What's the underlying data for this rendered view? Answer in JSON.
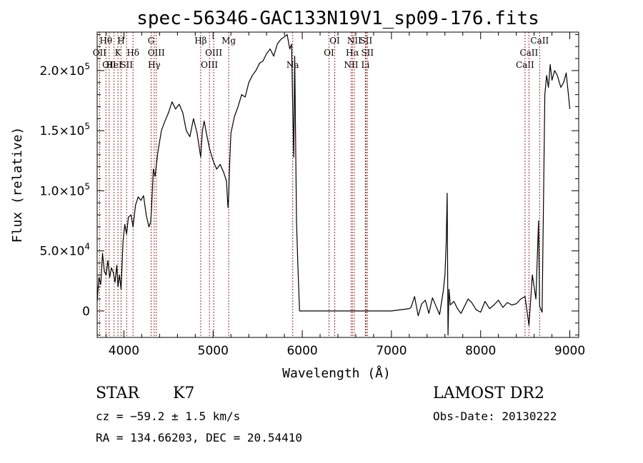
{
  "chart_data": {
    "type": "line",
    "title": "spec-56346-GAC133N19V1_sp09-176.fits",
    "xlabel": "Wavelength (Å)",
    "ylabel": "Flux (relative)",
    "xlim": [
      3700,
      9100
    ],
    "ylim": [
      -22000,
      232000
    ],
    "grid": false,
    "x_ticks": [
      {
        "value": 4000,
        "label": "4000"
      },
      {
        "value": 5000,
        "label": "5000"
      },
      {
        "value": 6000,
        "label": "6000"
      },
      {
        "value": 7000,
        "label": "7000"
      },
      {
        "value": 8000,
        "label": "8000"
      },
      {
        "value": 9000,
        "label": "9000"
      }
    ],
    "y_ticks": [
      {
        "value": 0,
        "label": "0"
      },
      {
        "value": 50000,
        "label": "5.0×10",
        "exp": "4"
      },
      {
        "value": 100000,
        "label": "1.0×10",
        "exp": "5"
      },
      {
        "value": 150000,
        "label": "1.5×10",
        "exp": "5"
      },
      {
        "value": 200000,
        "label": "2.0×10",
        "exp": "5"
      }
    ],
    "series": [
      {
        "x": [
          3700,
          3720,
          3740,
          3760,
          3780,
          3800,
          3820,
          3840,
          3860,
          3880,
          3900,
          3920,
          3933,
          3950,
          3968,
          3990,
          4010,
          4030,
          4050,
          4080,
          4102,
          4130,
          4160,
          4190,
          4220,
          4250,
          4280,
          4300,
          4310,
          4330,
          4350,
          4380,
          4420,
          4460,
          4500,
          4540,
          4580,
          4620,
          4660,
          4700,
          4740,
          4780,
          4820,
          4861,
          4880,
          4900,
          4930,
          4960,
          5000,
          5040,
          5080,
          5120,
          5150,
          5167,
          5175,
          5185,
          5200,
          5240,
          5280,
          5320,
          5360,
          5400,
          5440,
          5480,
          5520,
          5560,
          5600,
          5640,
          5680,
          5720,
          5760,
          5800,
          5830,
          5860,
          5880,
          5893,
          5905,
          5915,
          5935,
          5950,
          5970,
          6000,
          6500,
          7000,
          7200,
          7220,
          7260,
          7300,
          7340,
          7380,
          7420,
          7460,
          7500,
          7540,
          7580,
          7600,
          7615,
          7625,
          7635,
          7645,
          7660,
          7700,
          7740,
          7780,
          7820,
          7860,
          7900,
          7950,
          8000,
          8050,
          8100,
          8150,
          8200,
          8250,
          8300,
          8350,
          8400,
          8450,
          8498,
          8542,
          8580,
          8620,
          8650,
          8662,
          8690,
          8720,
          8740,
          8760,
          8780,
          8800,
          8830,
          8860,
          8900,
          8930,
          8960,
          8990,
          9000
        ],
        "y": [
          8000,
          28000,
          22000,
          48000,
          33000,
          30000,
          42000,
          28000,
          36000,
          32000,
          24000,
          38000,
          20000,
          30000,
          18000,
          58000,
          72000,
          64000,
          78000,
          80000,
          70000,
          88000,
          95000,
          92000,
          96000,
          80000,
          70000,
          74000,
          85000,
          118000,
          112000,
          132000,
          150000,
          158000,
          165000,
          174000,
          168000,
          172000,
          165000,
          150000,
          145000,
          160000,
          148000,
          128000,
          150000,
          158000,
          146000,
          135000,
          125000,
          118000,
          122000,
          115000,
          108000,
          86000,
          96000,
          122000,
          148000,
          162000,
          170000,
          180000,
          178000,
          190000,
          196000,
          200000,
          206000,
          208000,
          214000,
          218000,
          212000,
          222000,
          226000,
          228000,
          230000,
          218000,
          222000,
          170000,
          128000,
          212000,
          75000,
          40000,
          0,
          0,
          0,
          0,
          2000,
          3000,
          12000,
          -4000,
          6000,
          9000,
          -2000,
          11000,
          4000,
          -3000,
          16000,
          30000,
          58000,
          98000,
          -20000,
          18000,
          5000,
          8000,
          2000,
          -2000,
          4000,
          10000,
          7000,
          1000,
          -1000,
          8000,
          2000,
          5000,
          9000,
          3000,
          7000,
          5000,
          6000,
          10000,
          12000,
          -12000,
          30000,
          10000,
          75000,
          4000,
          -1000,
          180000,
          196000,
          186000,
          205000,
          192000,
          200000,
          196000,
          186000,
          190000,
          198000,
          176000,
          168000
        ]
      }
    ],
    "line_marks": [
      {
        "x": 3727,
        "label": "OII",
        "row": 1
      },
      {
        "x": 3798,
        "label": "Hθ",
        "row": 0
      },
      {
        "x": 3835,
        "label": "OII",
        "row": 2
      },
      {
        "x": 3889,
        "label": "HeI",
        "row": 2
      },
      {
        "x": 3933,
        "label": "K",
        "row": 1
      },
      {
        "x": 3968,
        "label": "H",
        "row": 0
      },
      {
        "x": 4030,
        "label": "SII",
        "row": 2
      },
      {
        "x": 4102,
        "label": "Hδ",
        "row": 1
      },
      {
        "x": 4305,
        "label": "G",
        "row": 0
      },
      {
        "x": 4340,
        "label": "Hγ",
        "row": 2
      },
      {
        "x": 4363,
        "label": "OIII",
        "row": 1
      },
      {
        "x": 4861,
        "label": "Hβ",
        "row": 0
      },
      {
        "x": 4959,
        "label": "OIII",
        "row": 2
      },
      {
        "x": 5007,
        "label": "OIII",
        "row": 1
      },
      {
        "x": 5175,
        "label": "Mg",
        "row": 0
      },
      {
        "x": 5893,
        "label": "Na",
        "row": 2
      },
      {
        "x": 6300,
        "label": "OI",
        "row": 1
      },
      {
        "x": 6364,
        "label": "OI",
        "row": 0
      },
      {
        "x": 6548,
        "label": "NII",
        "row": 2
      },
      {
        "x": 6563,
        "label": "Hα",
        "row": 1
      },
      {
        "x": 6583,
        "label": "NII",
        "row": 0
      },
      {
        "x": 6708,
        "label": "Li",
        "row": 2
      },
      {
        "x": 6716,
        "label": "SII",
        "row": 0
      },
      {
        "x": 6731,
        "label": "SII",
        "row": 1
      },
      {
        "x": 8498,
        "label": "CaII",
        "row": 2
      },
      {
        "x": 8542,
        "label": "CaII",
        "row": 1
      },
      {
        "x": 8662,
        "label": "CaII",
        "row": 0
      }
    ]
  },
  "info": {
    "object_class": "STAR",
    "subclass": "K7",
    "survey": "LAMOST DR2",
    "cz": "cz = −59.2 ± 1.5 km/s",
    "obs_date": "Obs-Date: 20130222",
    "coords": "RA = 134.66203, DEC =  20.54410"
  },
  "colors": {
    "spectrum": "#000000",
    "line_marker": "#b22222",
    "axes": "#000000",
    "background": "#ffffff"
  }
}
